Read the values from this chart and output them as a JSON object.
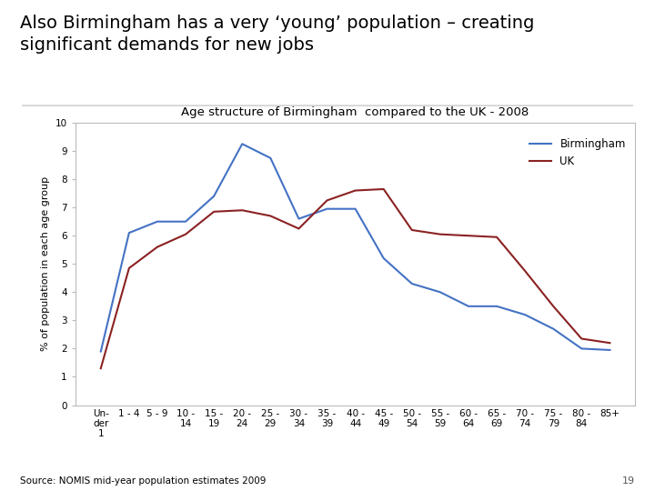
{
  "title_main": "Also Birmingham has a very ‘young’ population – creating\nsignificant demands for new jobs",
  "chart_title": "Age structure of Birmingham  compared to the UK - 2008",
  "ylabel": "% of population in each age group",
  "source": "Source: NOMIS mid-year population estimates 2009",
  "x_labels": [
    "Un-\nder\n1",
    "1 - 4",
    "5 - 9",
    "10 -\n14",
    "15 -\n19",
    "20 -\n24",
    "25 -\n29",
    "30 -\n34",
    "35 -\n39",
    "40 -\n44",
    "45 -\n49",
    "50 -\n54",
    "55 -\n59",
    "60 -\n64",
    "65 -\n69",
    "70 -\n74",
    "75 -\n79",
    "80 -\n84",
    "85+"
  ],
  "birmingham": [
    1.9,
    6.1,
    6.5,
    6.5,
    7.4,
    9.25,
    8.75,
    6.6,
    6.95,
    6.95,
    5.2,
    4.3,
    4.0,
    3.5,
    3.5,
    3.2,
    2.7,
    2.0,
    1.95
  ],
  "uk": [
    1.3,
    4.85,
    5.6,
    6.05,
    6.85,
    6.9,
    6.7,
    6.25,
    7.25,
    7.6,
    7.65,
    6.2,
    6.05,
    6.0,
    5.95,
    4.75,
    3.5,
    2.35,
    2.2
  ],
  "birmingham_color": "#4472C4",
  "uk_color": "#8B2222",
  "ylim": [
    0,
    10
  ],
  "yticks": [
    0,
    1,
    2,
    3,
    4,
    5,
    6,
    7,
    8,
    9,
    10
  ],
  "background_color": "#FFFFFF",
  "main_title_fontsize": 14,
  "chart_title_fontsize": 9.5,
  "axis_label_fontsize": 8,
  "tick_fontsize": 7.5,
  "legend_fontsize": 8.5
}
